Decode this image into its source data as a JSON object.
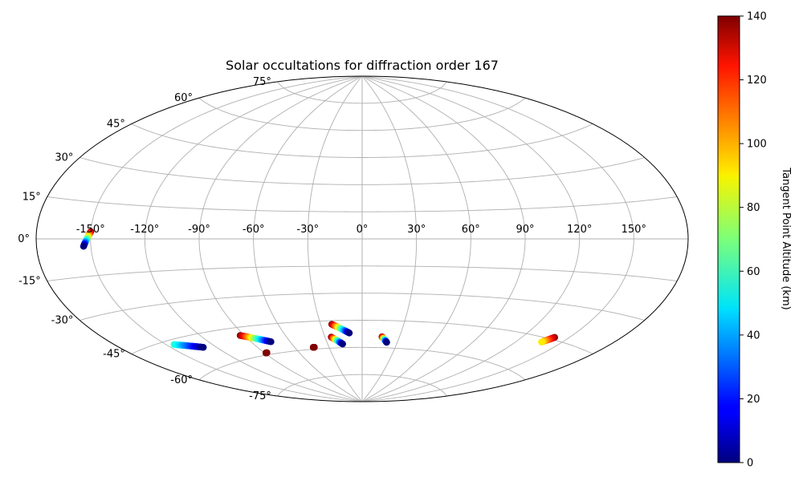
{
  "chart_data": {
    "type": "scatter",
    "projection": "aitoff",
    "title": "Solar occultations for diffraction order 167",
    "longitude_ticks": [
      "-150°",
      "-120°",
      "-90°",
      "-60°",
      "-30°",
      "0°",
      "30°",
      "60°",
      "90°",
      "120°",
      "150°"
    ],
    "longitude_values": [
      -150,
      -120,
      -90,
      -60,
      -30,
      0,
      30,
      60,
      90,
      120,
      150
    ],
    "latitude_ticks": [
      "75°",
      "60°",
      "45°",
      "30°",
      "15°",
      "0°",
      "-15°",
      "-30°",
      "-45°",
      "-60°",
      "-75°"
    ],
    "latitude_values": [
      75,
      60,
      45,
      30,
      15,
      0,
      -15,
      -30,
      -45,
      -60,
      -75
    ],
    "grid": true,
    "colorbar": {
      "label": "Tangent Point Altitude (km)",
      "colormap": "jet",
      "range": [
        0,
        140
      ],
      "ticks": [
        "0",
        "20",
        "40",
        "60",
        "80",
        "100",
        "120",
        "140"
      ],
      "tick_values": [
        0,
        20,
        40,
        60,
        80,
        100,
        120,
        140
      ]
    },
    "series": [
      {
        "lon_start": -150,
        "lat_start": 3,
        "lon_end": -154,
        "lat_end": -3,
        "alt_start": 140,
        "alt_end": 0
      },
      {
        "lon_start": -145,
        "lat_start": -47,
        "lon_end": -129,
        "lat_end": -51,
        "alt_start": 60,
        "alt_end": 0
      },
      {
        "lon_start": -93,
        "lat_start": -49,
        "lon_end": -75,
        "lat_end": -54,
        "alt_start": 140,
        "alt_end": 0
      },
      {
        "lon_start": -89,
        "lat_start": -59,
        "lon_end": -88,
        "lat_end": -59,
        "alt_start": 140,
        "alt_end": 140
      },
      {
        "lon_start": -44,
        "lat_start": -59,
        "lon_end": -43,
        "lat_end": -59,
        "alt_start": 140,
        "alt_end": 140
      },
      {
        "lon_start": -22,
        "lat_start": -47,
        "lon_end": -10,
        "lat_end": -52,
        "alt_start": 140,
        "alt_end": 0
      },
      {
        "lon_start": -25,
        "lat_start": -54,
        "lon_end": -17,
        "lat_end": -58,
        "alt_start": 140,
        "alt_end": 0
      },
      {
        "lon_start": 16,
        "lat_start": -54,
        "lon_end": 21,
        "lat_end": -57,
        "alt_start": 140,
        "alt_end": 0
      },
      {
        "lon_start": 141,
        "lat_start": -44,
        "lon_end": 137,
        "lat_end": -47,
        "alt_start": 140,
        "alt_end": 90
      }
    ]
  }
}
